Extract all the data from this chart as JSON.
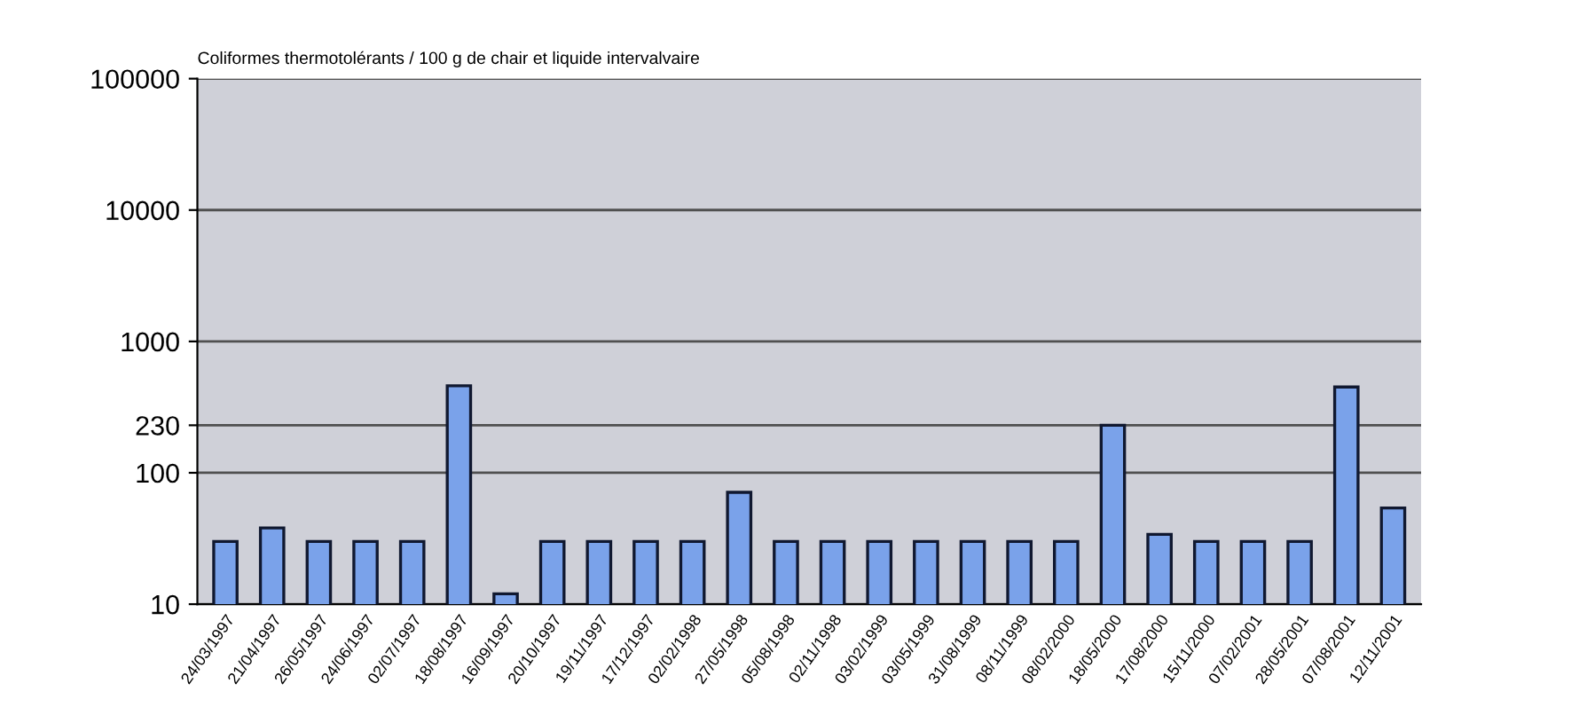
{
  "chart_data": {
    "type": "bar",
    "title": "Coliformes thermotolérants / 100 g de chair et liquide intervalvaire",
    "categories": [
      "24/03/1997",
      "21/04/1997",
      "26/05/1997",
      "24/06/1997",
      "02/07/1997",
      "18/08/1997",
      "16/09/1997",
      "20/10/1997",
      "19/11/1997",
      "17/12/1997",
      "02/02/1998",
      "27/05/1998",
      "05/08/1998",
      "02/11/1998",
      "03/02/1999",
      "03/05/1999",
      "31/08/1999",
      "08/11/1999",
      "08/02/2000",
      "18/05/2000",
      "17/08/2000",
      "15/11/2000",
      "07/02/2001",
      "28/05/2001",
      "07/08/2001",
      "12/11/2001"
    ],
    "values": [
      30,
      38,
      30,
      30,
      30,
      460,
      12,
      30,
      30,
      30,
      30,
      71,
      30,
      30,
      30,
      30,
      30,
      30,
      30,
      230,
      34,
      30,
      30,
      30,
      450,
      54
    ],
    "color": "#7aa2ea",
    "log": "y",
    "ylim": [
      10,
      100000
    ],
    "yticks": [
      10,
      100,
      230,
      1000,
      10000,
      100000
    ],
    "grid": "y",
    "legend": false
  }
}
